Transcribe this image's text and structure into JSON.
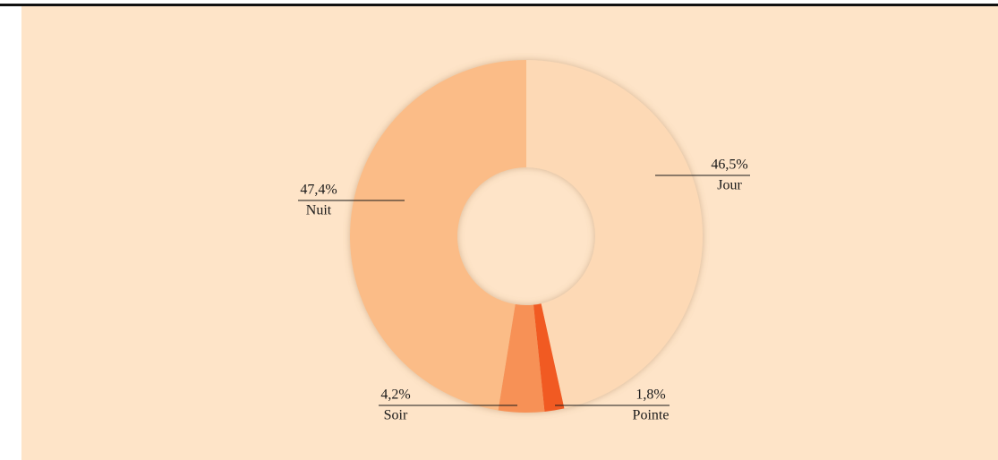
{
  "chart_data": {
    "type": "donut",
    "categories": [
      "Jour",
      "Pointe",
      "Soir",
      "Nuit"
    ],
    "values": [
      46.5,
      1.8,
      4.2,
      47.4
    ],
    "value_labels": [
      "46,5%",
      "1,8%",
      "4,2%",
      "47,4%"
    ],
    "colors": [
      "#fdd9b5",
      "#f15a22",
      "#f79156",
      "#fbbc87"
    ]
  }
}
